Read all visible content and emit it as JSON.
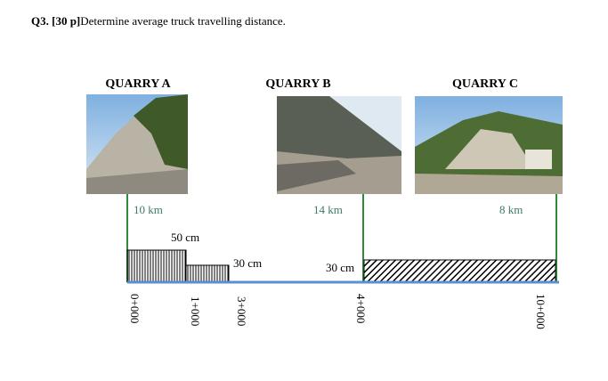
{
  "header": {
    "label": "Q3. [30 p]",
    "text": "Determine average truck travelling distance."
  },
  "quarries": [
    {
      "name": "QUARRY A",
      "distance": "10 km"
    },
    {
      "name": "QUARRY B",
      "distance": "14 km"
    },
    {
      "name": "QUARRY C",
      "distance": "8 km"
    }
  ],
  "thicknesses": [
    "50 cm",
    "30 cm",
    "30 cm"
  ],
  "stations": [
    "0+000",
    "1+000",
    "3+000",
    "4+000",
    "10+000"
  ]
}
